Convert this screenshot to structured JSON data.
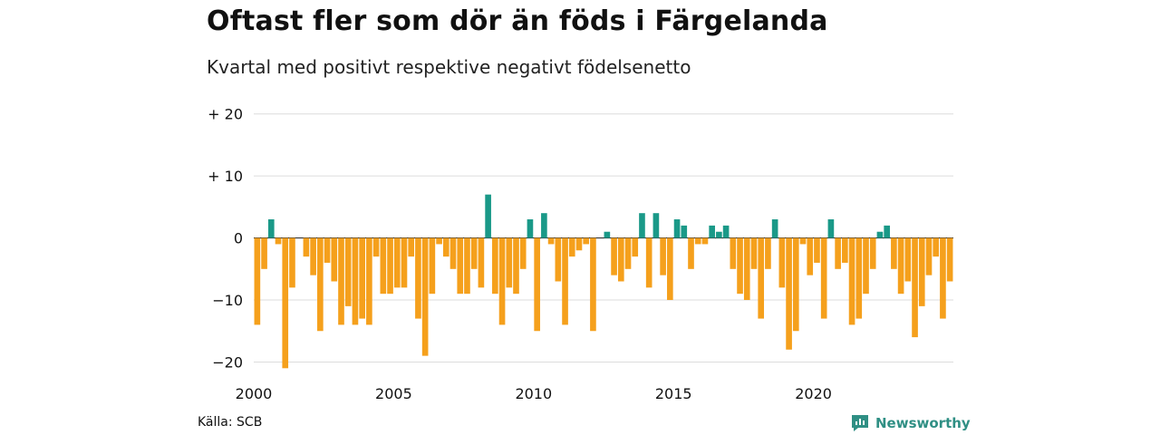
{
  "title": "Oftast fler som dör än föds i Färgelanda",
  "subtitle": "Kvartal med positivt respektive negativt födelsenetto",
  "source": "Källa: SCB",
  "brand": {
    "name": "Newsworthy",
    "icon": "newsworthy-logo-icon",
    "color": "#2f8f84"
  },
  "colors": {
    "positive": "#1a9988",
    "negative": "#f5a01c",
    "grid": "#dcdcdc"
  },
  "chart_data": {
    "type": "bar",
    "ylim": [
      -23,
      22
    ],
    "yticks": [
      {
        "value": 20,
        "label": "+ 20"
      },
      {
        "value": 10,
        "label": "+ 10"
      },
      {
        "value": 0,
        "label": "0"
      },
      {
        "value": -10,
        "label": "−10"
      },
      {
        "value": -20,
        "label": "−20"
      }
    ],
    "xticks": [
      {
        "index": 0,
        "label": "2000"
      },
      {
        "index": 20,
        "label": "2005"
      },
      {
        "index": 40,
        "label": "2010"
      },
      {
        "index": 60,
        "label": "2015"
      },
      {
        "index": 80,
        "label": "2020"
      }
    ],
    "start_year": 2000,
    "grid": true,
    "values": [
      -14,
      -5,
      3,
      -1,
      -21,
      -8,
      0,
      -3,
      -6,
      -15,
      -4,
      -7,
      -14,
      -11,
      -14,
      -13,
      -14,
      -3,
      -9,
      -9,
      -8,
      -8,
      -3,
      -13,
      -19,
      -9,
      -1,
      -3,
      -5,
      -9,
      -9,
      -5,
      -8,
      7,
      -9,
      -14,
      -8,
      -9,
      -5,
      3,
      -15,
      4,
      -1,
      -7,
      -14,
      -3,
      -2,
      -1,
      -15,
      0,
      1,
      -6,
      -7,
      -5,
      -3,
      4,
      -8,
      4,
      -6,
      -10,
      3,
      2,
      -5,
      -1,
      -1,
      2,
      1,
      2,
      -5,
      -9,
      -10,
      -5,
      -13,
      -5,
      3,
      -8,
      -18,
      -15,
      -1,
      -6,
      -4,
      -13,
      3,
      -5,
      -4,
      -14,
      -13,
      -9,
      -5,
      1,
      2,
      -5,
      -9,
      -7,
      -16,
      -11,
      -6,
      -3,
      -13,
      -7
    ]
  }
}
